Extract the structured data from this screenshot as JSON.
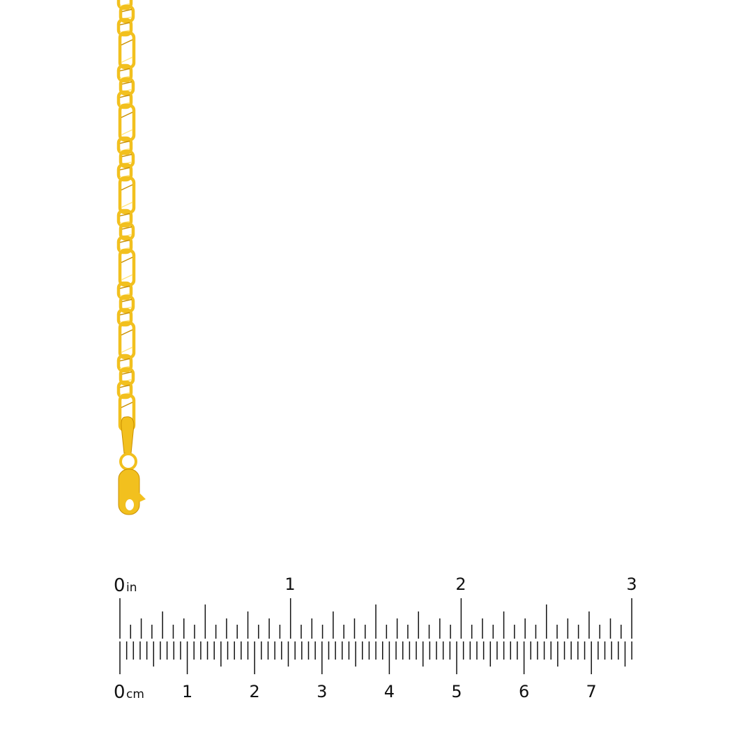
{
  "product": {
    "name": "figaro-chain-bracelet",
    "metal_color": "#F2C01E",
    "shadow_color": "#C98F00",
    "highlight_color": "#FFE680"
  },
  "ruler": {
    "inch_unit": "in",
    "cm_unit": "cm",
    "inch_labels": [
      "0",
      "1",
      "2",
      "3"
    ],
    "cm_labels": [
      "0",
      "1",
      "2",
      "3",
      "4",
      "5",
      "6",
      "7"
    ],
    "inch_subdivisions": 16,
    "mm_per_cm": 10,
    "tick_color": "#111111"
  }
}
